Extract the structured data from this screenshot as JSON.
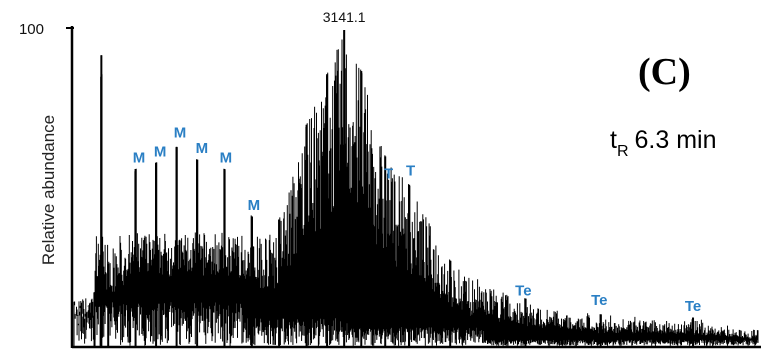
{
  "chart_data": {
    "type": "line",
    "title": "",
    "xlabel": "",
    "ylabel": "Relative abundance",
    "y_ticks": [
      "100"
    ],
    "ylim": [
      0,
      100
    ],
    "grid": false,
    "base_peak_label": "3141.1",
    "panel_label": "(C)",
    "retention_time": {
      "prefix": "t",
      "subscript": "R",
      "value": "6.3 min"
    },
    "annotations": [
      {
        "label": "M",
        "x": 0.095,
        "y": 58
      },
      {
        "label": "M",
        "x": 0.126,
        "y": 60
      },
      {
        "label": "M",
        "x": 0.155,
        "y": 66
      },
      {
        "label": "M",
        "x": 0.187,
        "y": 61
      },
      {
        "label": "M",
        "x": 0.222,
        "y": 58
      },
      {
        "label": "M",
        "x": 0.263,
        "y": 43
      },
      {
        "label": "T",
        "x": 0.46,
        "y": 53
      },
      {
        "label": "T",
        "x": 0.492,
        "y": 54
      },
      {
        "label": "Te",
        "x": 0.657,
        "y": 16
      },
      {
        "label": "Te",
        "x": 0.768,
        "y": 13
      },
      {
        "label": "Te",
        "x": 0.905,
        "y": 11
      }
    ],
    "spectrum": [
      {
        "x": 0.0,
        "y": 14
      },
      {
        "x": 0.03,
        "y": 17
      },
      {
        "x": 0.04,
        "y": 92
      },
      {
        "x": 0.05,
        "y": 26
      },
      {
        "x": 0.09,
        "y": 56
      },
      {
        "x": 0.12,
        "y": 58
      },
      {
        "x": 0.15,
        "y": 63
      },
      {
        "x": 0.18,
        "y": 59
      },
      {
        "x": 0.22,
        "y": 56
      },
      {
        "x": 0.26,
        "y": 41
      },
      {
        "x": 0.3,
        "y": 40
      },
      {
        "x": 0.34,
        "y": 70
      },
      {
        "x": 0.37,
        "y": 86
      },
      {
        "x": 0.395,
        "y": 100
      },
      {
        "x": 0.42,
        "y": 87
      },
      {
        "x": 0.455,
        "y": 60
      },
      {
        "x": 0.49,
        "y": 51
      },
      {
        "x": 0.55,
        "y": 27
      },
      {
        "x": 0.66,
        "y": 15
      },
      {
        "x": 0.77,
        "y": 10
      },
      {
        "x": 0.905,
        "y": 9
      },
      {
        "x": 1.0,
        "y": 5
      }
    ]
  }
}
